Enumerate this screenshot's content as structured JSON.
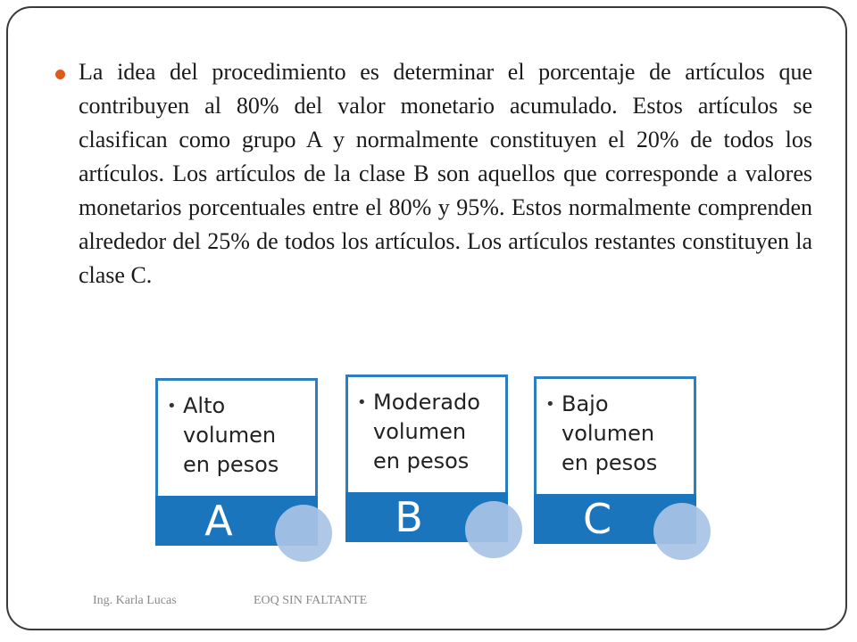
{
  "colors": {
    "bullet": "#e05a1c",
    "card_border": "#2b7fc1",
    "card_band": "#1a75bc",
    "card_circle": "#a9c3e6"
  },
  "body": {
    "paragraph": "La idea del procedimiento es determinar el porcentaje de artículos que contribuyen al 80% del valor monetario acumulado.  Estos artículos se clasifican como grupo A y normalmente constituyen el 20% de todos los artículos.  Los artículos de la clase B son aquellos que corresponde a valores monetarios porcentuales entre el 80% y 95%.  Estos normalmente comprenden alrededor del 25% de todos los artículos.  Los artículos restantes constituyen la clase C."
  },
  "cards": [
    {
      "item": "Alto\nvolumen\nen pesos",
      "letter": "A"
    },
    {
      "item": "Moderado\nvolumen\nen pesos",
      "letter": "B"
    },
    {
      "item": "Bajo\nvolumen\nen pesos",
      "letter": "C"
    }
  ],
  "footer": {
    "author": "Ing. Karla Lucas",
    "title": "EOQ SIN FALTANTE"
  }
}
